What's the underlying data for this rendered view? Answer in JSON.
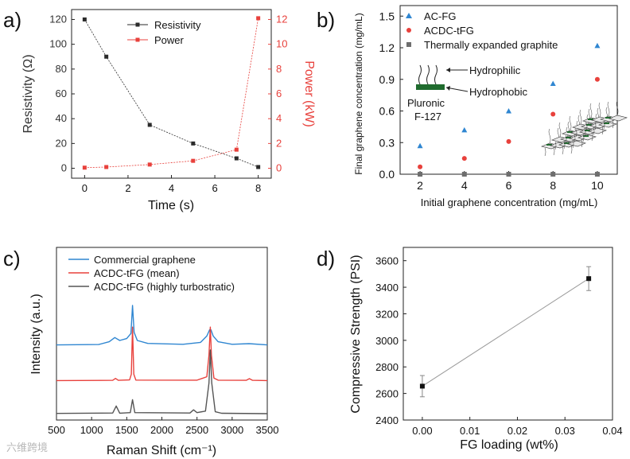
{
  "figure": {
    "watermark": "六维跨境",
    "colors": {
      "black": "#2b2b2b",
      "red": "#e8413c",
      "blue": "#2f86d1",
      "gray": "#6e6e6e",
      "axis": "#222222"
    }
  },
  "chart_data": [
    {
      "panel": "a)",
      "type": "line",
      "xlabel": "Time (s)",
      "ylabel_left": "Resistivity (Ω)",
      "ylabel_right": "Power (kW)",
      "xlim": [
        -0.6,
        8.6
      ],
      "ylim_left": [
        -8,
        128
      ],
      "ylim_right": [
        -0.8,
        12.8
      ],
      "xticks": [
        0,
        2,
        4,
        6,
        8
      ],
      "yticks_left": [
        0,
        20,
        40,
        60,
        80,
        100,
        120
      ],
      "yticks_right": [
        0,
        2,
        4,
        6,
        8,
        10,
        12
      ],
      "legend_position": "top-center",
      "series": [
        {
          "name": "Resistivity",
          "axis": "left",
          "color": "#2b2b2b",
          "x": [
            0,
            1,
            3,
            5,
            7,
            8
          ],
          "y": [
            120,
            90,
            35,
            20,
            8,
            1
          ]
        },
        {
          "name": "Power",
          "axis": "right",
          "color": "#e8413c",
          "x": [
            0,
            1,
            3,
            5,
            7,
            8
          ],
          "y": [
            0.05,
            0.1,
            0.3,
            0.6,
            1.5,
            12.1
          ]
        }
      ]
    },
    {
      "panel": "b)",
      "type": "scatter",
      "xlabel": "Initial graphene concentration (mg/mL)",
      "ylabel": "Final graphene concentration (mg/mL)",
      "xlim": [
        1.1,
        10.9
      ],
      "ylim": [
        0,
        1.6
      ],
      "xticks": [
        2,
        4,
        6,
        8,
        10
      ],
      "yticks": [
        0.0,
        0.3,
        0.6,
        0.9,
        1.2,
        1.5
      ],
      "legend_position": "top-left",
      "annotations": {
        "hydrophilic": "Hydrophilic",
        "hydrophobic": "Hydrophobic",
        "pluronic_1": "Pluronic",
        "pluronic_2": "F-127"
      },
      "series": [
        {
          "name": "AC-FG",
          "marker": "triangle",
          "color": "#2f86d1",
          "x": [
            2,
            4,
            6,
            8,
            10
          ],
          "y": [
            0.27,
            0.42,
            0.6,
            0.86,
            1.22
          ]
        },
        {
          "name": "ACDC-tFG",
          "marker": "circle",
          "color": "#e8413c",
          "x": [
            2,
            4,
            6,
            8,
            10
          ],
          "y": [
            0.07,
            0.15,
            0.31,
            0.57,
            0.9
          ]
        },
        {
          "name": "Thermally expanded graphite",
          "marker": "square",
          "color": "#6e6e6e",
          "x": [
            2,
            4,
            6,
            8,
            10
          ],
          "y": [
            0.0,
            0.0,
            0.0,
            0.0,
            0.0
          ]
        }
      ]
    },
    {
      "panel": "c)",
      "type": "line",
      "xlabel": "Raman Shift (cm⁻¹)",
      "ylabel": "Intensity (a.u.)",
      "xlim": [
        500,
        3500
      ],
      "ylim": [
        0,
        1
      ],
      "xticks": [
        500,
        1000,
        1500,
        2000,
        2500,
        3000,
        3500
      ],
      "legend_position": "top-left",
      "series": [
        {
          "name": "Commercial graphene",
          "color": "#2f86d1",
          "offset": 0.54,
          "x": [
            500,
            1100,
            1250,
            1330,
            1400,
            1500,
            1560,
            1582,
            1605,
            1650,
            1800,
            2300,
            2550,
            2640,
            2680,
            2700,
            2730,
            2800,
            3000,
            3240,
            3500
          ],
          "y": [
            0.0,
            0.003,
            0.025,
            0.058,
            0.035,
            0.05,
            0.09,
            0.31,
            0.1,
            0.035,
            0.012,
            0.005,
            0.02,
            0.07,
            0.12,
            0.118,
            0.07,
            0.025,
            0.005,
            0.01,
            0.0
          ]
        },
        {
          "name": "ACDC-tFG (mean)",
          "color": "#e8413c",
          "offset": 0.26,
          "x": [
            500,
            1300,
            1340,
            1380,
            1540,
            1565,
            1582,
            1600,
            1630,
            2500,
            2640,
            2670,
            2690,
            2705,
            2740,
            2800,
            3200,
            3245,
            3290,
            3500
          ],
          "y": [
            0.0,
            0.002,
            0.017,
            0.002,
            0.005,
            0.05,
            0.42,
            0.05,
            0.004,
            0.003,
            0.03,
            0.2,
            0.42,
            0.2,
            0.02,
            0.003,
            0.002,
            0.015,
            0.002,
            0.0
          ]
        },
        {
          "name": "ACDC-tFG (highly turbostratic)",
          "color": "#555555",
          "offset": 0.0,
          "x": [
            500,
            1300,
            1350,
            1400,
            1550,
            1582,
            1615,
            2400,
            2450,
            2500,
            2620,
            2670,
            2690,
            2710,
            2760,
            2850,
            3500
          ],
          "y": [
            0.002,
            0.005,
            0.06,
            0.004,
            0.008,
            0.11,
            0.008,
            0.005,
            0.03,
            0.008,
            0.02,
            0.24,
            0.5,
            0.24,
            0.015,
            0.003,
            0.0
          ]
        }
      ]
    },
    {
      "panel": "d)",
      "type": "line",
      "xlabel": "FG loading (wt%)",
      "ylabel": "Compressive Strength (PSI)",
      "xlim": [
        -0.004,
        0.04
      ],
      "ylim": [
        2400,
        3700
      ],
      "xticks": [
        0.0,
        0.01,
        0.02,
        0.03,
        0.04
      ],
      "xtick_labels": [
        "0.00",
        "0.01",
        "0.02",
        "0.03",
        "0.04"
      ],
      "yticks": [
        2400,
        2600,
        2800,
        3000,
        3200,
        3400,
        3600
      ],
      "series": [
        {
          "name": "Compressive strength",
          "color": "#111111",
          "x": [
            0.0,
            0.035
          ],
          "y": [
            2655,
            3465
          ],
          "err": [
            80,
            90
          ]
        }
      ]
    }
  ]
}
